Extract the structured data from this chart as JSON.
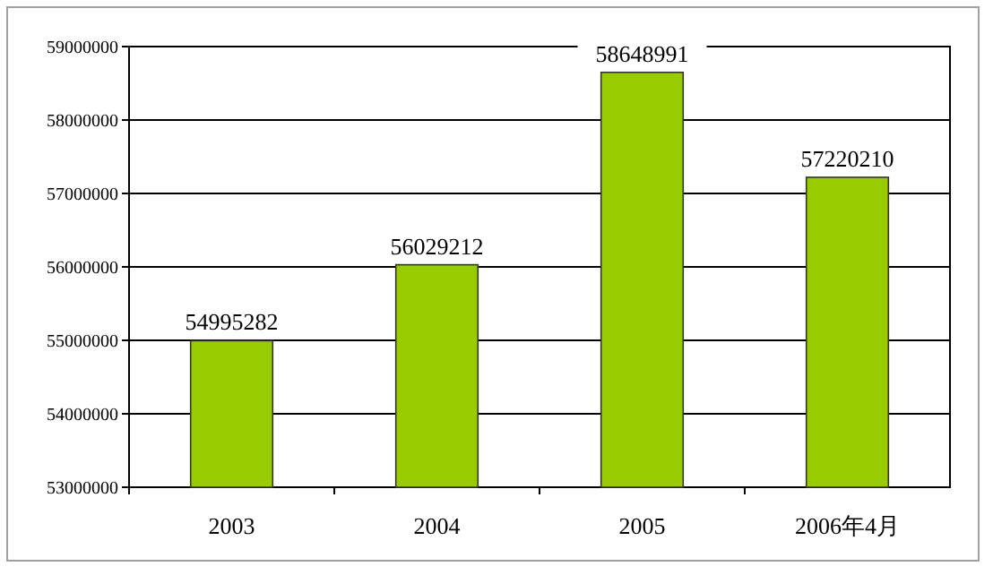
{
  "chart_data": {
    "type": "bar",
    "categories": [
      "2003",
      "2004",
      "2005",
      "2006年4月"
    ],
    "values": [
      54995282,
      56029212,
      58648991,
      57220210
    ],
    "color": "#99cc00",
    "ylim": [
      53000000,
      59000000
    ],
    "yticks": [
      53000000,
      54000000,
      55000000,
      56000000,
      57000000,
      58000000,
      59000000
    ],
    "grid": "y",
    "data_labels": true
  }
}
